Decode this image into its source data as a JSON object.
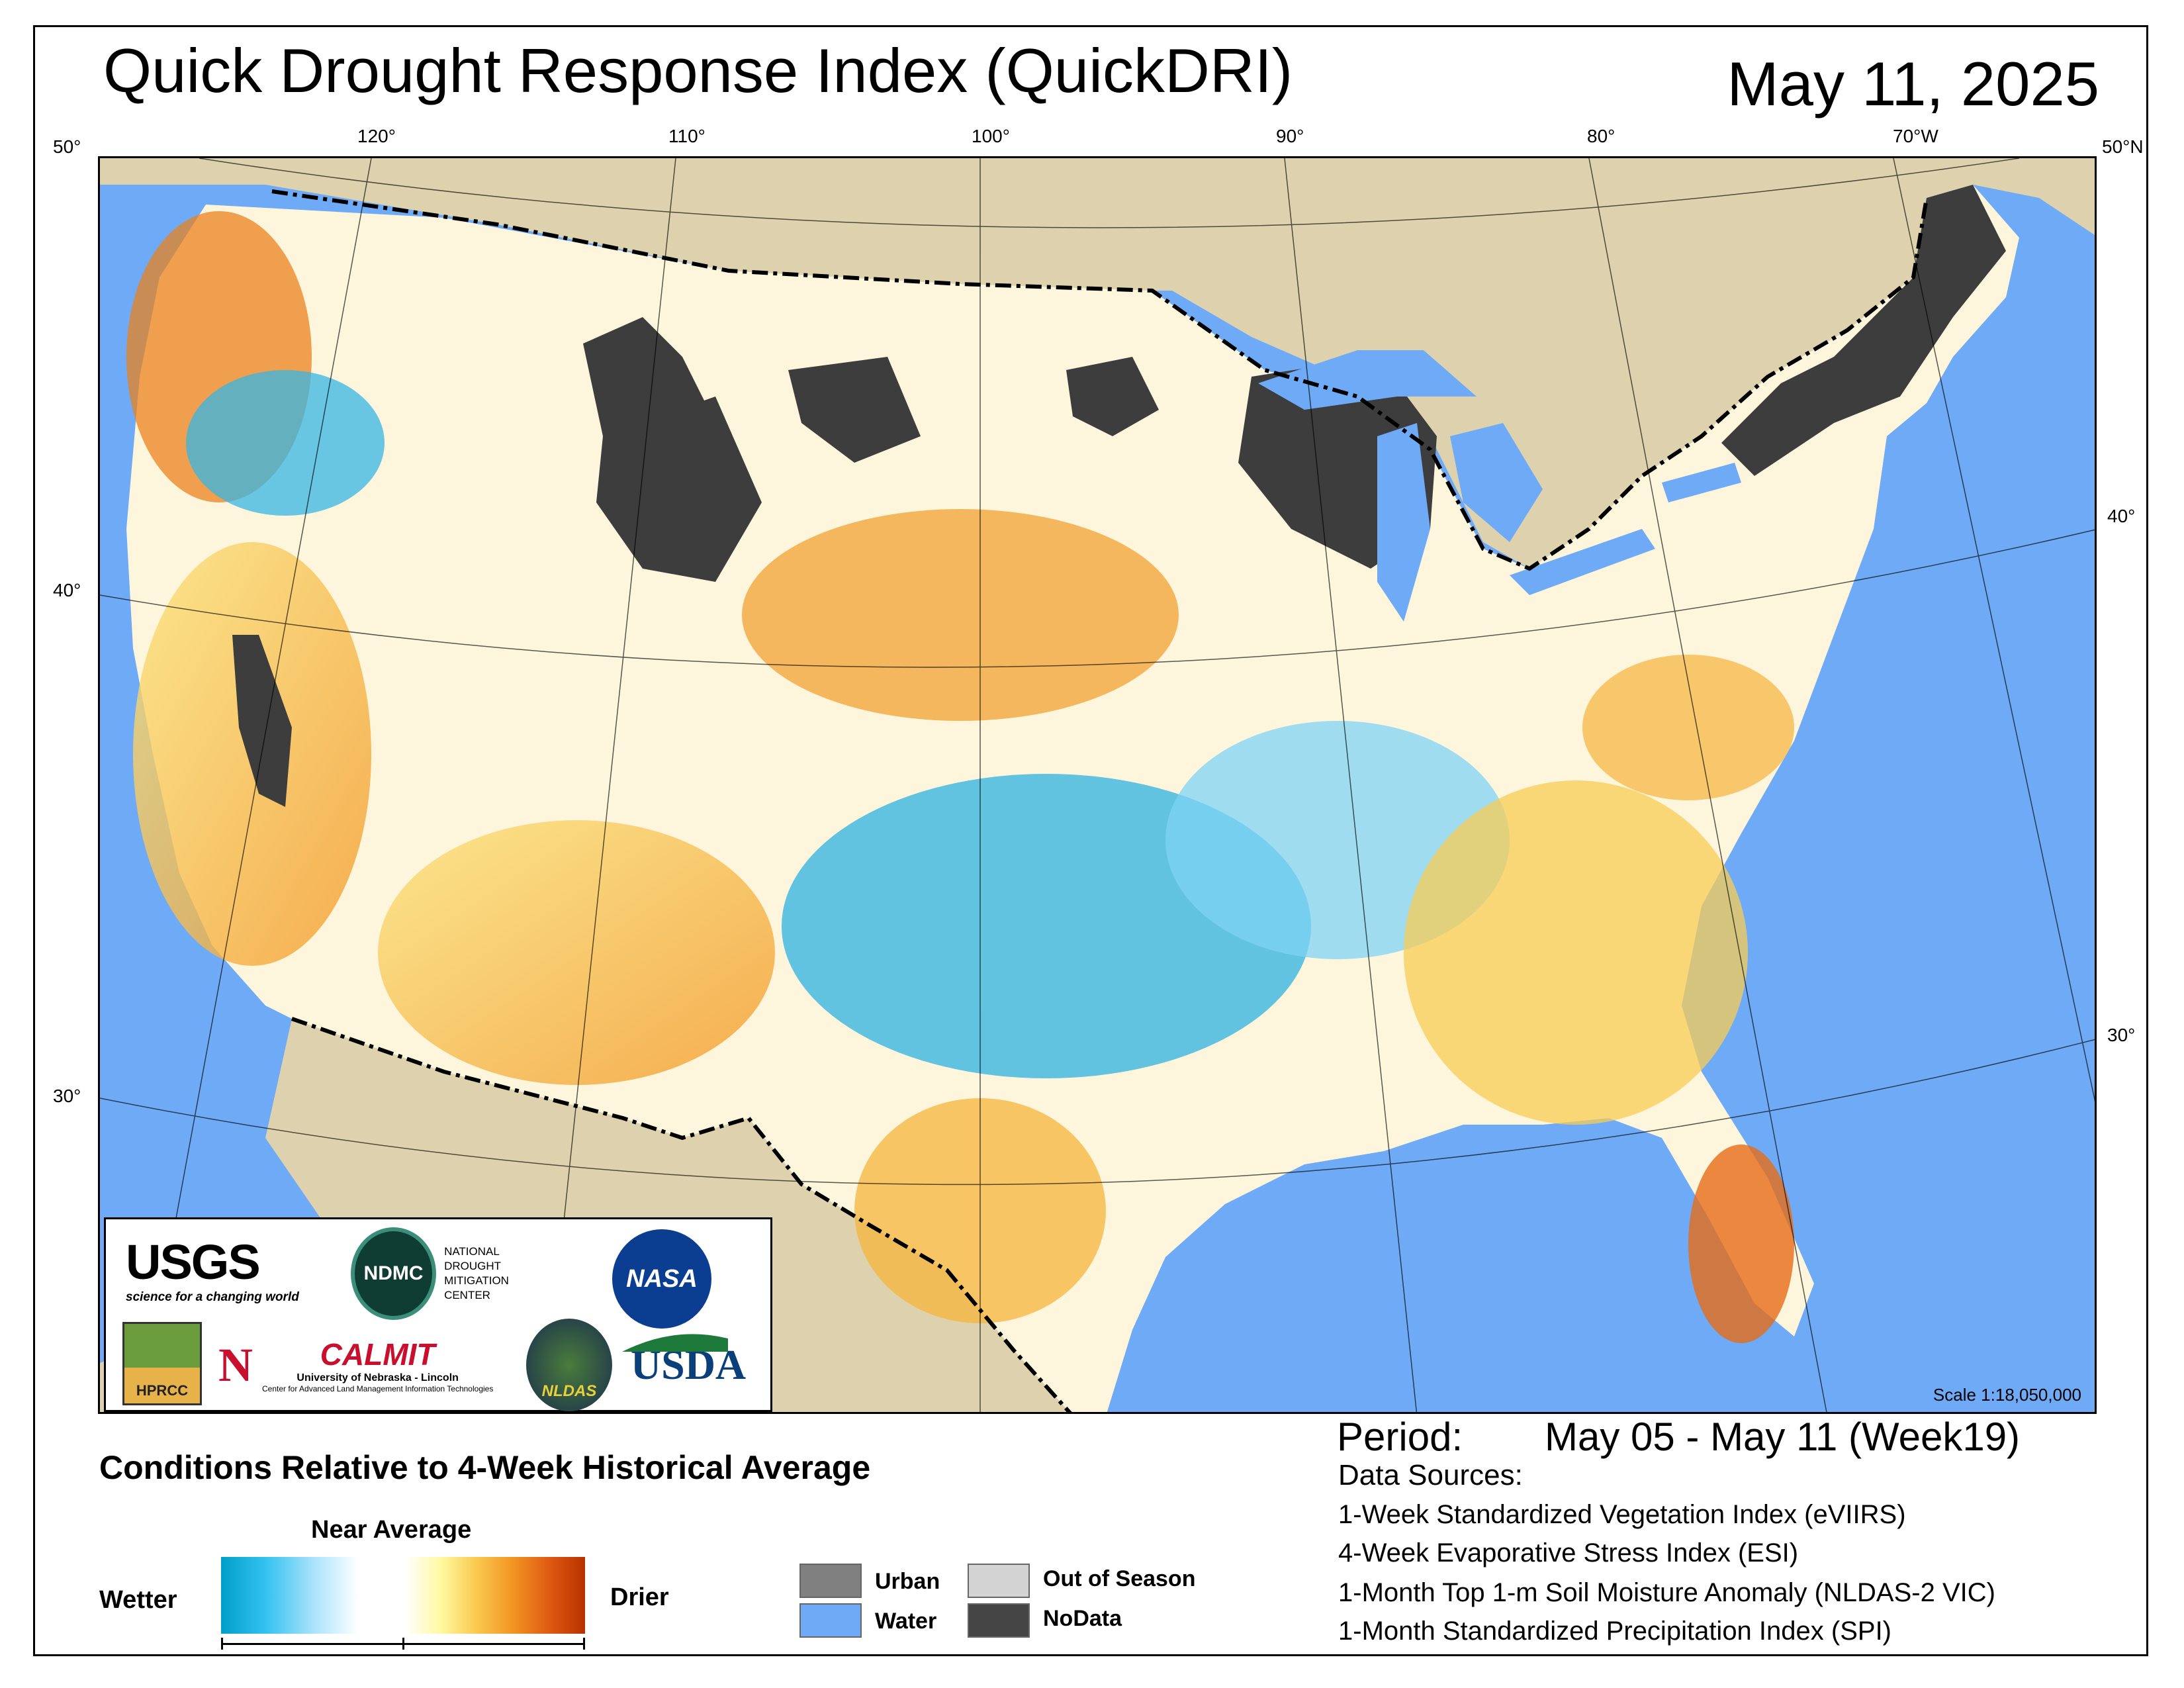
{
  "title": "Quick Drought Response Index (QuickDRI)",
  "date": "May 11, 2025",
  "map": {
    "lon_ticks_top": [
      "120°",
      "110°",
      "100°",
      "90°",
      "80°",
      "70°W"
    ],
    "lat_ticks_left": [
      "50°",
      "40°",
      "30°"
    ],
    "lat_ticks_right": [
      "50°N",
      "40°",
      "30°"
    ],
    "scale_text": "Scale 1:18,050,000",
    "colors": {
      "ocean": "#6eaaf5",
      "land_outside": "#ddd2ad",
      "nodata": "#3d3d3d",
      "urban": "#808080",
      "near_average": "#ffffff",
      "wetter": "#35c3f0",
      "drier": "#f29423"
    }
  },
  "logos": {
    "usgs": {
      "mark": "USGS",
      "tagline": "science for a changing world"
    },
    "ndmc": {
      "mark": "NDMC",
      "name_line1": "NATIONAL DROUGHT",
      "name_line2": "MITIGATION CENTER"
    },
    "nasa": {
      "mark": "NASA"
    },
    "hprcc": {
      "mark": "HPRCC"
    },
    "calmit": {
      "mark": "N",
      "name": "CALMIT",
      "line1": "University of Nebraska - Lincoln",
      "line2": "Center for Advanced Land Management Information Technologies"
    },
    "nldas": {
      "mark": "NLDAS"
    },
    "usda": {
      "mark": "USDA"
    }
  },
  "legend": {
    "title": "Conditions Relative to 4-Week Historical Average",
    "near_average": "Near Average",
    "wetter": "Wetter",
    "drier": "Drier",
    "swatches": [
      {
        "label": "Urban",
        "color": "#808080"
      },
      {
        "label": "Water",
        "color": "#6eaaf5"
      },
      {
        "label": "Out of Season",
        "color": "#d3d3d3"
      },
      {
        "label": "NoData",
        "color": "#454545"
      }
    ]
  },
  "info": {
    "period_label": "Period:",
    "period_value": "May 05 - May 11 (Week19)",
    "sources_title": "Data Sources:",
    "sources": [
      "1-Week Standardized Vegetation Index (eVIIRS)",
      "4-Week Evaporative Stress Index (ESI)",
      "1-Month Top 1-m Soil Moisture Anomaly (NLDAS-2 VIC)",
      "1-Month Standardized Precipitation Index (SPI)"
    ]
  }
}
